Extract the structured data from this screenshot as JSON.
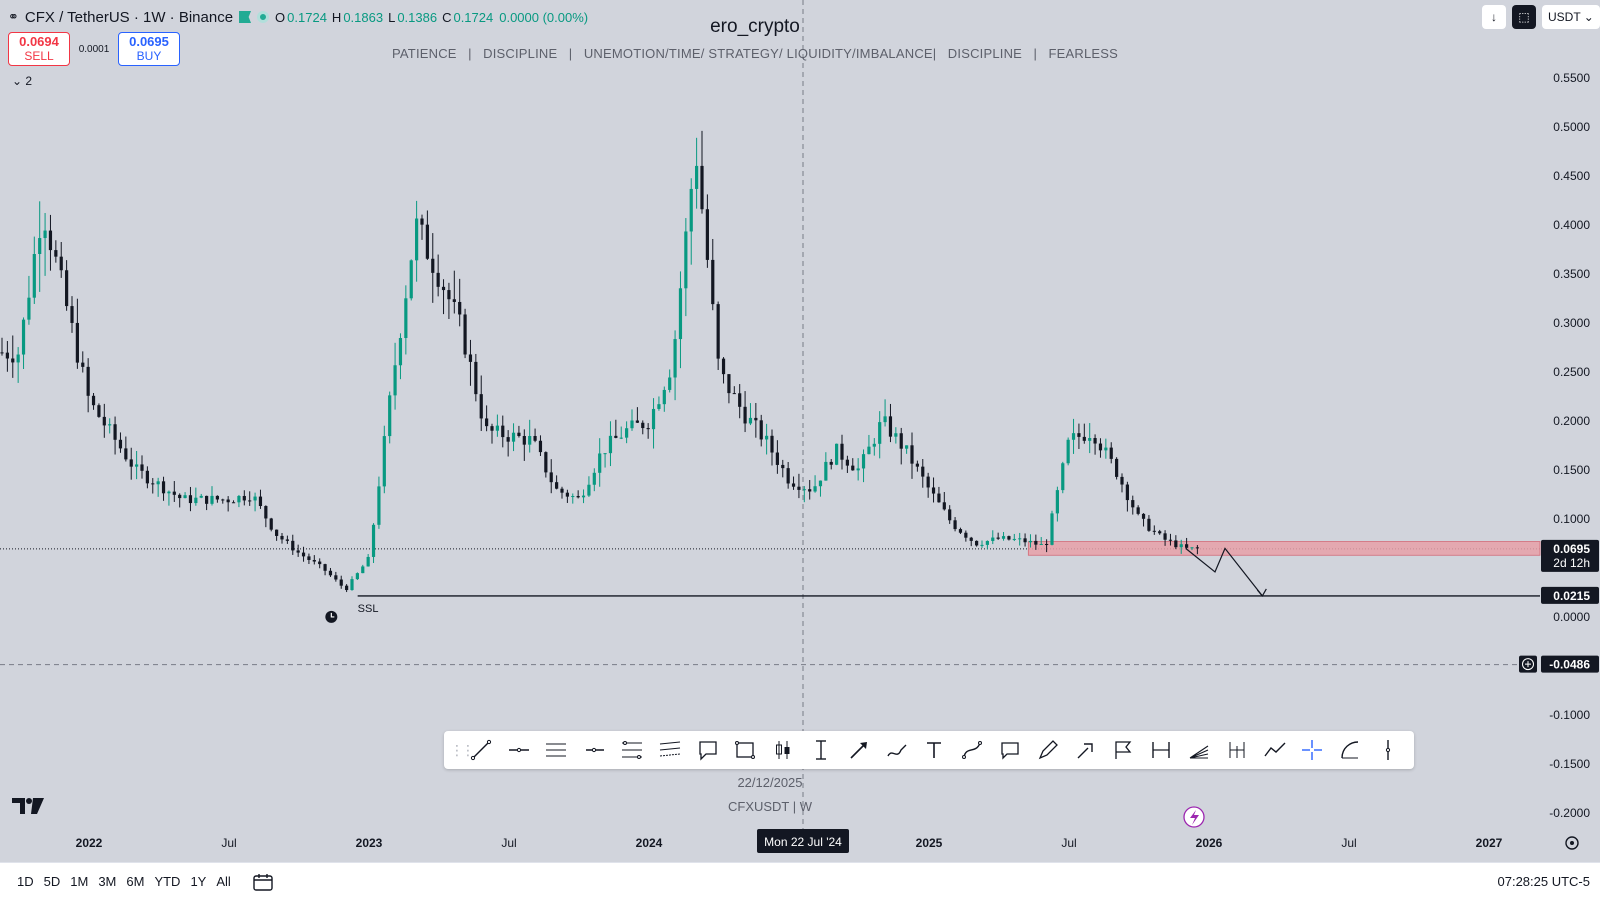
{
  "header": {
    "symbol": "CFX / TetherUS · 1W · Binance",
    "ohlc": {
      "o_label": "O",
      "o": "0.1724",
      "h_label": "H",
      "h": "0.1863",
      "l_label": "L",
      "l": "0.1386",
      "c_label": "C",
      "c": "0.1724",
      "change": "0.0000 (0.00%)"
    }
  },
  "trade": {
    "sell_price": "0.0694",
    "sell_label": "SELL",
    "spread": "0.0001",
    "buy_price": "0.0695",
    "buy_label": "BUY"
  },
  "watermark": {
    "title": "ero_crypto",
    "subtitle": "PATIENCE   |   DISCIPLINE   |   UNEMOTION/TIME/ STRATEGY/ LIQUIDITY/IMBALANCE|   DISCIPLINE   |   FEARLESS"
  },
  "legend_toggle": "⌄ 2",
  "right_controls": {
    "currency": "USDT ⌄"
  },
  "annotations": {
    "ssl_label": "SSL",
    "date_watermark": "22/12/2025",
    "symbol_watermark": "CFXUSDT  |  W",
    "crosshair_time_label": "Mon 22 Jul '24",
    "price_label_current": "0.0695",
    "price_label_countdown": "2d 12h",
    "price_label_ssl": "0.0215",
    "crosshair_price_label": "-0.0486"
  },
  "colors": {
    "background": "#d1d4dc",
    "up": "#089981",
    "down": "#131722",
    "zone": "#e8a0a8",
    "zone_border": "#d46a77"
  },
  "bottom_bar": {
    "ranges": [
      "1D",
      "5D",
      "1M",
      "3M",
      "6M",
      "YTD",
      "1Y",
      "All"
    ],
    "clock": "07:28:25 UTC-5"
  },
  "toolbar_icons": [
    "trend-line-icon",
    "horizontal-line-icon",
    "parallel-channel-icon",
    "horizontal-ray-icon",
    "fib-retracement-icon",
    "fib-channel-icon",
    "callout-icon",
    "rectangle-icon",
    "long-position-icon",
    "date-price-range-icon",
    "arrow-marker-icon",
    "brush-icon",
    "text-icon",
    "curve-icon",
    "comment-icon",
    "pen-icon",
    "arrow-icon",
    "flag-icon",
    "date-range-icon",
    "gann-icon",
    "pitchfork-icon",
    "path-icon",
    "crosshair-icon",
    "arc-icon",
    "vertical-line-icon"
  ],
  "chart_data": {
    "type": "candlestick",
    "symbol": "CFXUSDT",
    "timeframe": "1W",
    "y_axis": {
      "ticks": [
        "0.5500",
        "0.5000",
        "0.4500",
        "0.4000",
        "0.3500",
        "0.3000",
        "0.2500",
        "0.2000",
        "0.1500",
        "0.1000",
        "0.0000",
        "-0.1000",
        "-0.1500",
        "-0.2000"
      ],
      "range": [
        -0.21,
        0.56
      ]
    },
    "x_axis": {
      "ticks": [
        "2022",
        "Jul",
        "2023",
        "Jul",
        "2024",
        "2025",
        "Jul",
        "2026",
        "Jul",
        "2027"
      ]
    },
    "series_anchors": [
      {
        "date": "2021-10",
        "close": 0.27
      },
      {
        "date": "2021-11",
        "close": 0.42
      },
      {
        "date": "2022-01",
        "close": 0.22
      },
      {
        "date": "2022-03",
        "close": 0.15
      },
      {
        "date": "2022-05",
        "close": 0.12
      },
      {
        "date": "2022-07",
        "close": 0.12
      },
      {
        "date": "2022-08",
        "close": 0.125
      },
      {
        "date": "2022-09",
        "close": 0.085
      },
      {
        "date": "2022-10",
        "close": 0.065
      },
      {
        "date": "2022-11",
        "close": 0.05
      },
      {
        "date": "2022-12",
        "close": 0.028
      },
      {
        "date": "2023-01",
        "close": 0.06
      },
      {
        "date": "2023-02",
        "close": 0.24
      },
      {
        "date": "2023-03",
        "close": 0.4
      },
      {
        "date": "2023-04",
        "close": 0.35
      },
      {
        "date": "2023-05",
        "close": 0.29
      },
      {
        "date": "2023-06",
        "close": 0.19
      },
      {
        "date": "2023-08",
        "close": 0.18
      },
      {
        "date": "2023-09",
        "close": 0.13
      },
      {
        "date": "2023-10",
        "close": 0.12
      },
      {
        "date": "2023-11",
        "close": 0.17
      },
      {
        "date": "2023-12",
        "close": 0.19
      },
      {
        "date": "2024-01",
        "close": 0.2
      },
      {
        "date": "2024-02",
        "close": 0.26
      },
      {
        "date": "2024-03",
        "close": 0.48
      },
      {
        "date": "2024-04",
        "close": 0.25
      },
      {
        "date": "2024-05",
        "close": 0.21
      },
      {
        "date": "2024-06",
        "close": 0.18
      },
      {
        "date": "2024-07",
        "close": 0.14
      },
      {
        "date": "2024-08",
        "close": 0.13
      },
      {
        "date": "2024-09",
        "close": 0.17
      },
      {
        "date": "2024-10",
        "close": 0.15
      },
      {
        "date": "2024-11",
        "close": 0.2
      },
      {
        "date": "2024-12",
        "close": 0.17
      },
      {
        "date": "2025-01",
        "close": 0.13
      },
      {
        "date": "2025-02",
        "close": 0.095
      },
      {
        "date": "2025-03",
        "close": 0.075
      },
      {
        "date": "2025-04",
        "close": 0.08
      },
      {
        "date": "2025-05",
        "close": 0.078
      },
      {
        "date": "2025-06",
        "close": 0.072
      },
      {
        "date": "2025-07",
        "close": 0.18
      },
      {
        "date": "2025-08",
        "close": 0.19
      },
      {
        "date": "2025-09",
        "close": 0.15
      },
      {
        "date": "2025-10",
        "close": 0.1
      },
      {
        "date": "2025-11",
        "close": 0.08
      },
      {
        "date": "2025-12",
        "close": 0.0695
      }
    ],
    "levels": {
      "last_price": 0.0695,
      "ssl_line": 0.0215,
      "crosshair_price": -0.0486
    },
    "zone": {
      "price_low": 0.063,
      "price_high": 0.077,
      "date_from": "2025-05"
    },
    "projection_path": [
      {
        "date": "2025-12",
        "price": 0.07
      },
      {
        "date": "2026-01",
        "price": 0.046
      },
      {
        "date": "2026-01",
        "price": 0.07
      },
      {
        "date": "2026-02",
        "price": 0.0215
      }
    ]
  }
}
